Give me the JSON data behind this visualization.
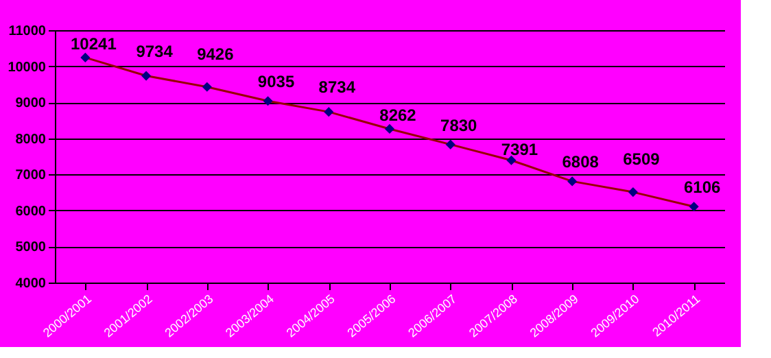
{
  "chart_data": {
    "type": "line",
    "categories": [
      "2000/2001",
      "2001/2002",
      "2002/2003",
      "2003/2004",
      "2004/2005",
      "2005/2006",
      "2006/2007",
      "2007/2008",
      "2008/2009",
      "2009/2010",
      "2010/2011"
    ],
    "series": [
      {
        "color": "#990000",
        "values": [
          10241,
          9734,
          9426,
          9035,
          8734,
          8262,
          7830,
          7391,
          6808,
          6509,
          6106
        ]
      }
    ],
    "ylim": [
      4000,
      11000
    ],
    "yticks": [
      4000,
      5000,
      6000,
      7000,
      8000,
      9000,
      10000,
      11000
    ],
    "grid": "y",
    "marker": "diamond",
    "data_labels": true
  }
}
